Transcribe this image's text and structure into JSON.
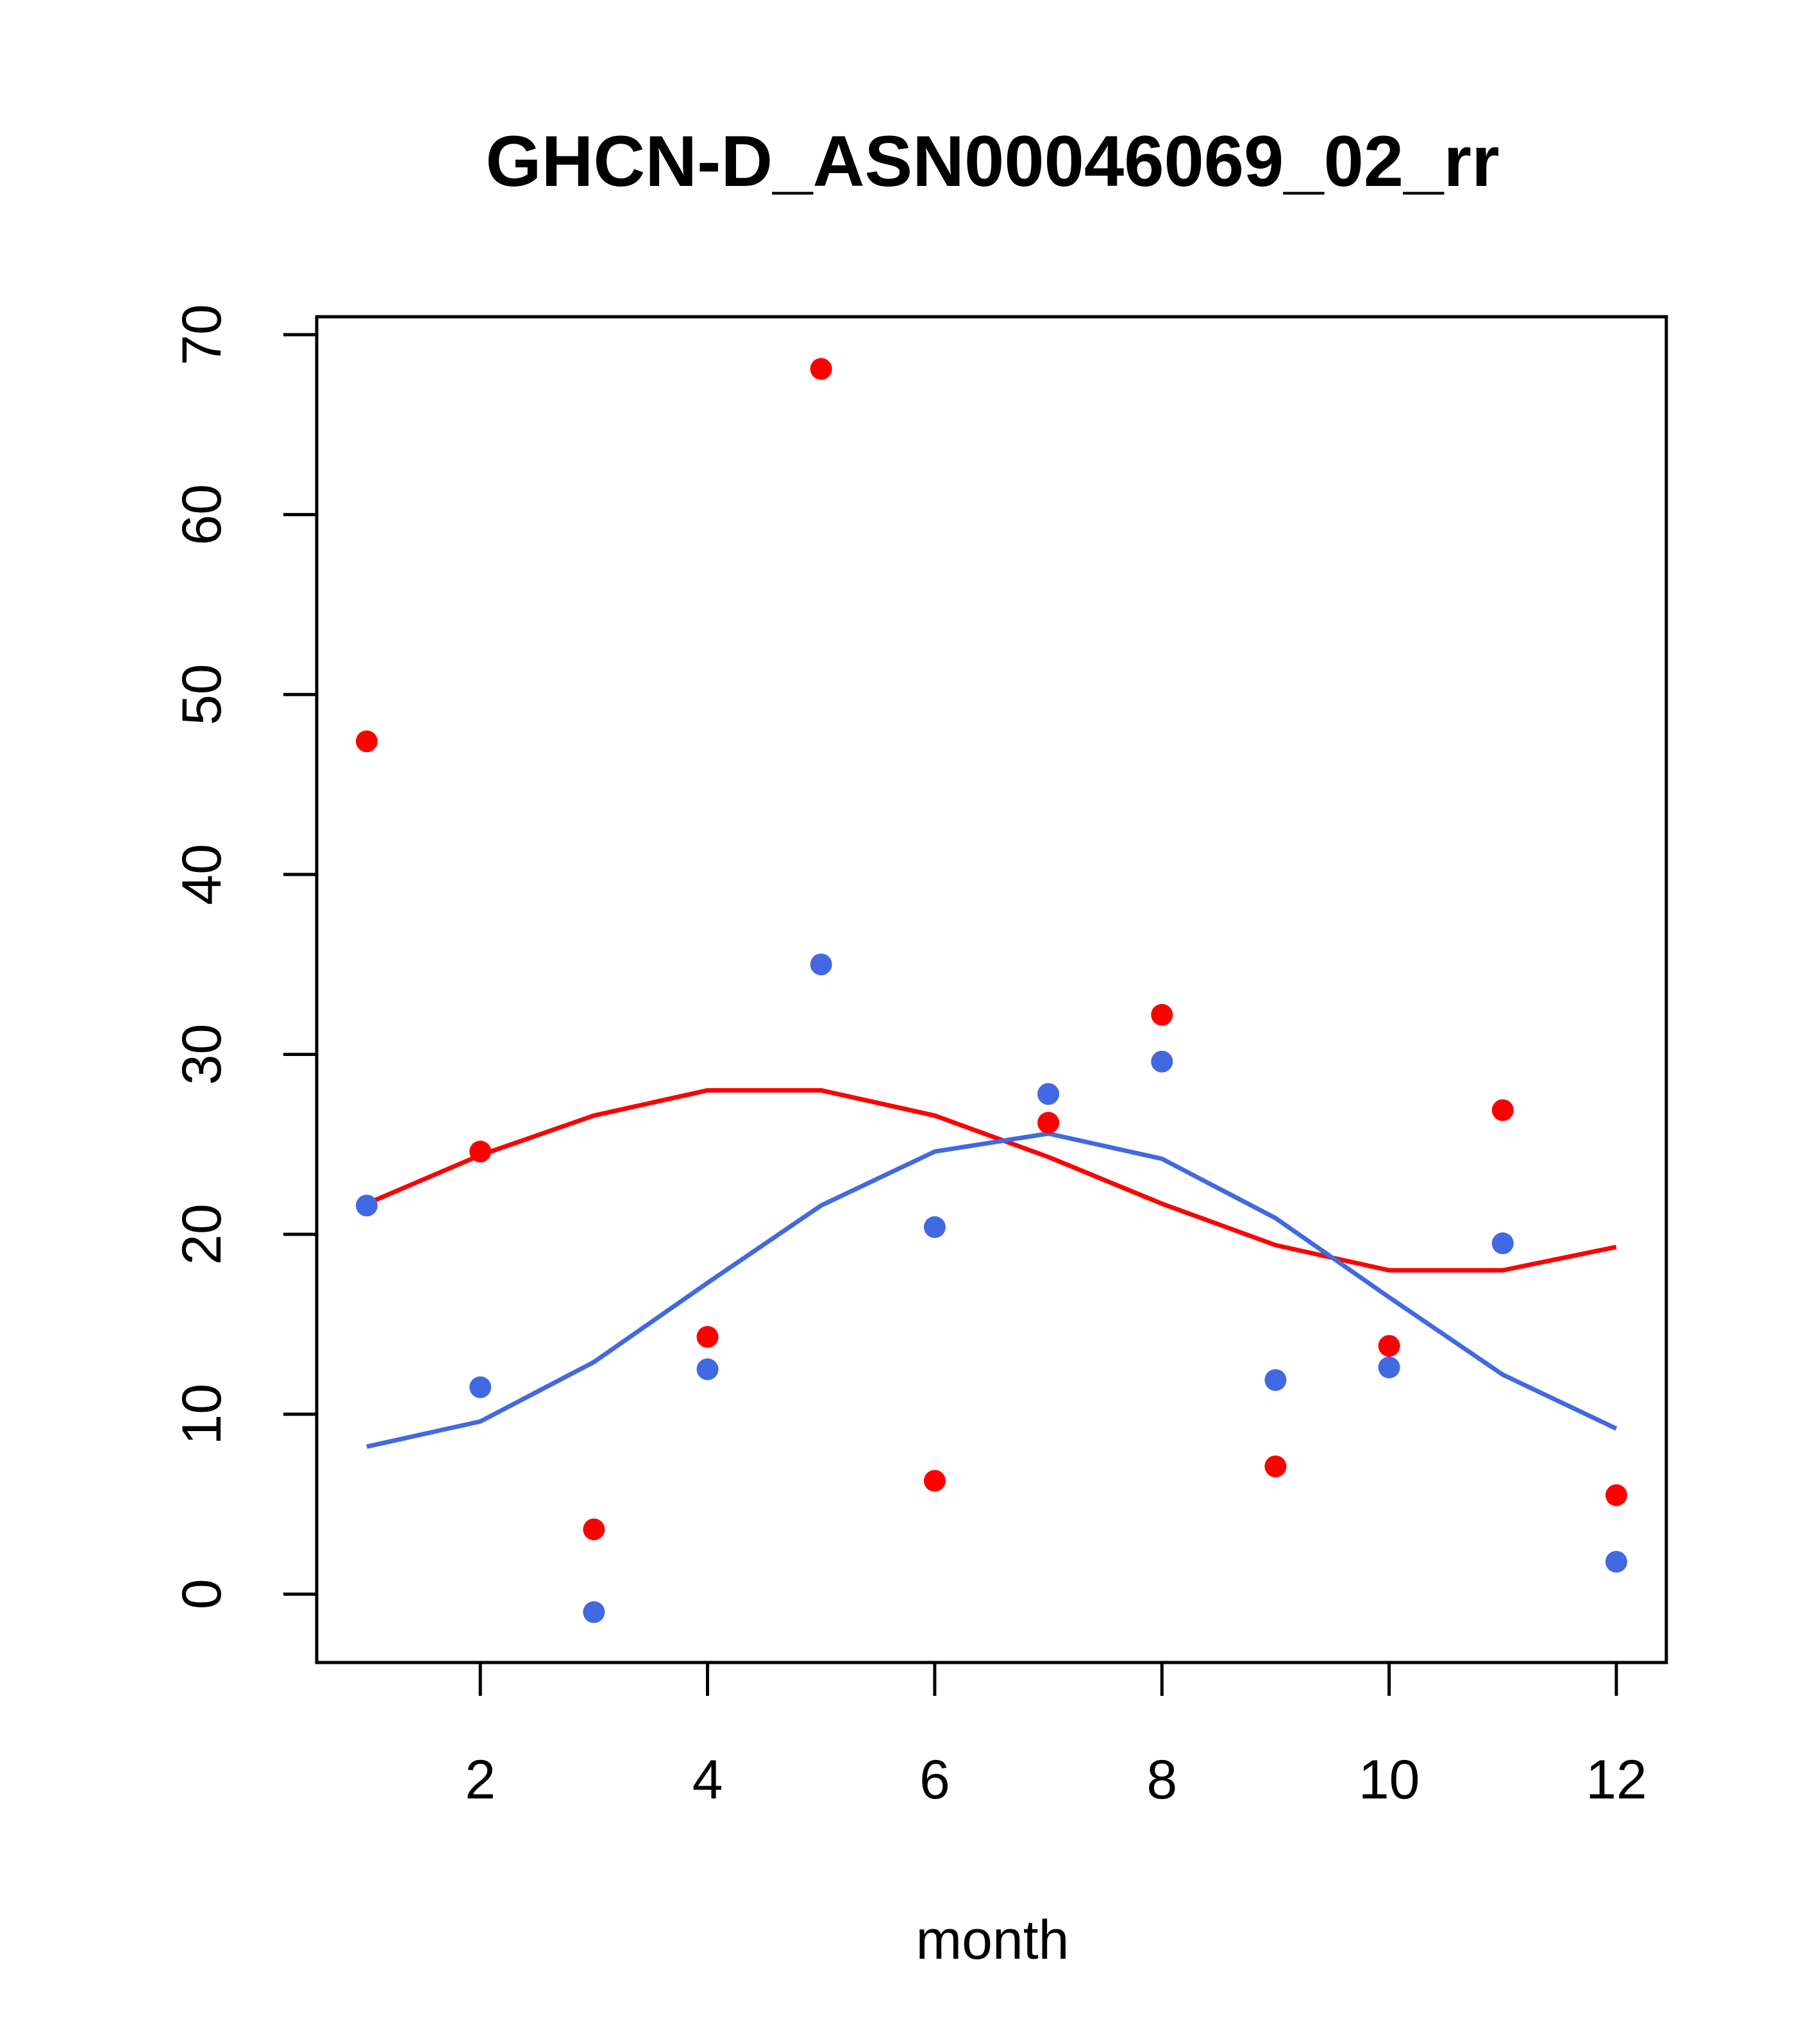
{
  "chart_data": {
    "type": "scatter",
    "title": "GHCN-D_ASN00046069_02_rr",
    "xlabel": "month",
    "ylabel": "",
    "xlim": [
      0.56,
      12.44
    ],
    "ylim": [
      -3.8,
      71.0
    ],
    "x_ticks": [
      2,
      4,
      6,
      8,
      10,
      12
    ],
    "y_ticks": [
      0,
      10,
      20,
      30,
      40,
      50,
      60,
      70
    ],
    "x_tick_labels": [
      "2",
      "4",
      "6",
      "8",
      "10",
      "12"
    ],
    "y_tick_labels": [
      "0",
      "10",
      "20",
      "30",
      "40",
      "50",
      "60",
      "70"
    ],
    "grid": false,
    "series": [
      {
        "kind": "points",
        "color": "#ff0000",
        "x": [
          1,
          2,
          3,
          4,
          5,
          6,
          7,
          8,
          9,
          10,
          11,
          12
        ],
        "y": [
          47.4,
          24.6,
          3.6,
          14.3,
          68.1,
          6.3,
          26.2,
          32.2,
          7.1,
          13.8,
          26.9,
          5.5
        ]
      },
      {
        "kind": "points",
        "color": "#4169e1",
        "x": [
          1,
          2,
          3,
          4,
          5,
          6,
          7,
          8,
          9,
          10,
          11,
          12
        ],
        "y": [
          21.6,
          11.5,
          -1.0,
          12.5,
          35.0,
          20.4,
          27.8,
          29.6,
          11.9,
          12.6,
          19.5,
          1.8
        ]
      },
      {
        "kind": "line",
        "color": "#ff0000",
        "x": [
          1,
          2,
          3,
          4,
          5,
          6,
          7,
          8,
          9,
          10,
          11,
          12
        ],
        "y": [
          21.7,
          24.4,
          26.6,
          28.0,
          28.0,
          26.6,
          24.3,
          21.7,
          19.4,
          18.0,
          18.0,
          19.3
        ]
      },
      {
        "kind": "line",
        "color": "#4169e1",
        "x": [
          1,
          2,
          3,
          4,
          5,
          6,
          7,
          8,
          9,
          10,
          11,
          12
        ],
        "y": [
          8.2,
          9.6,
          12.9,
          17.3,
          21.6,
          24.6,
          25.6,
          24.2,
          20.9,
          16.5,
          12.2,
          9.2
        ]
      }
    ]
  }
}
